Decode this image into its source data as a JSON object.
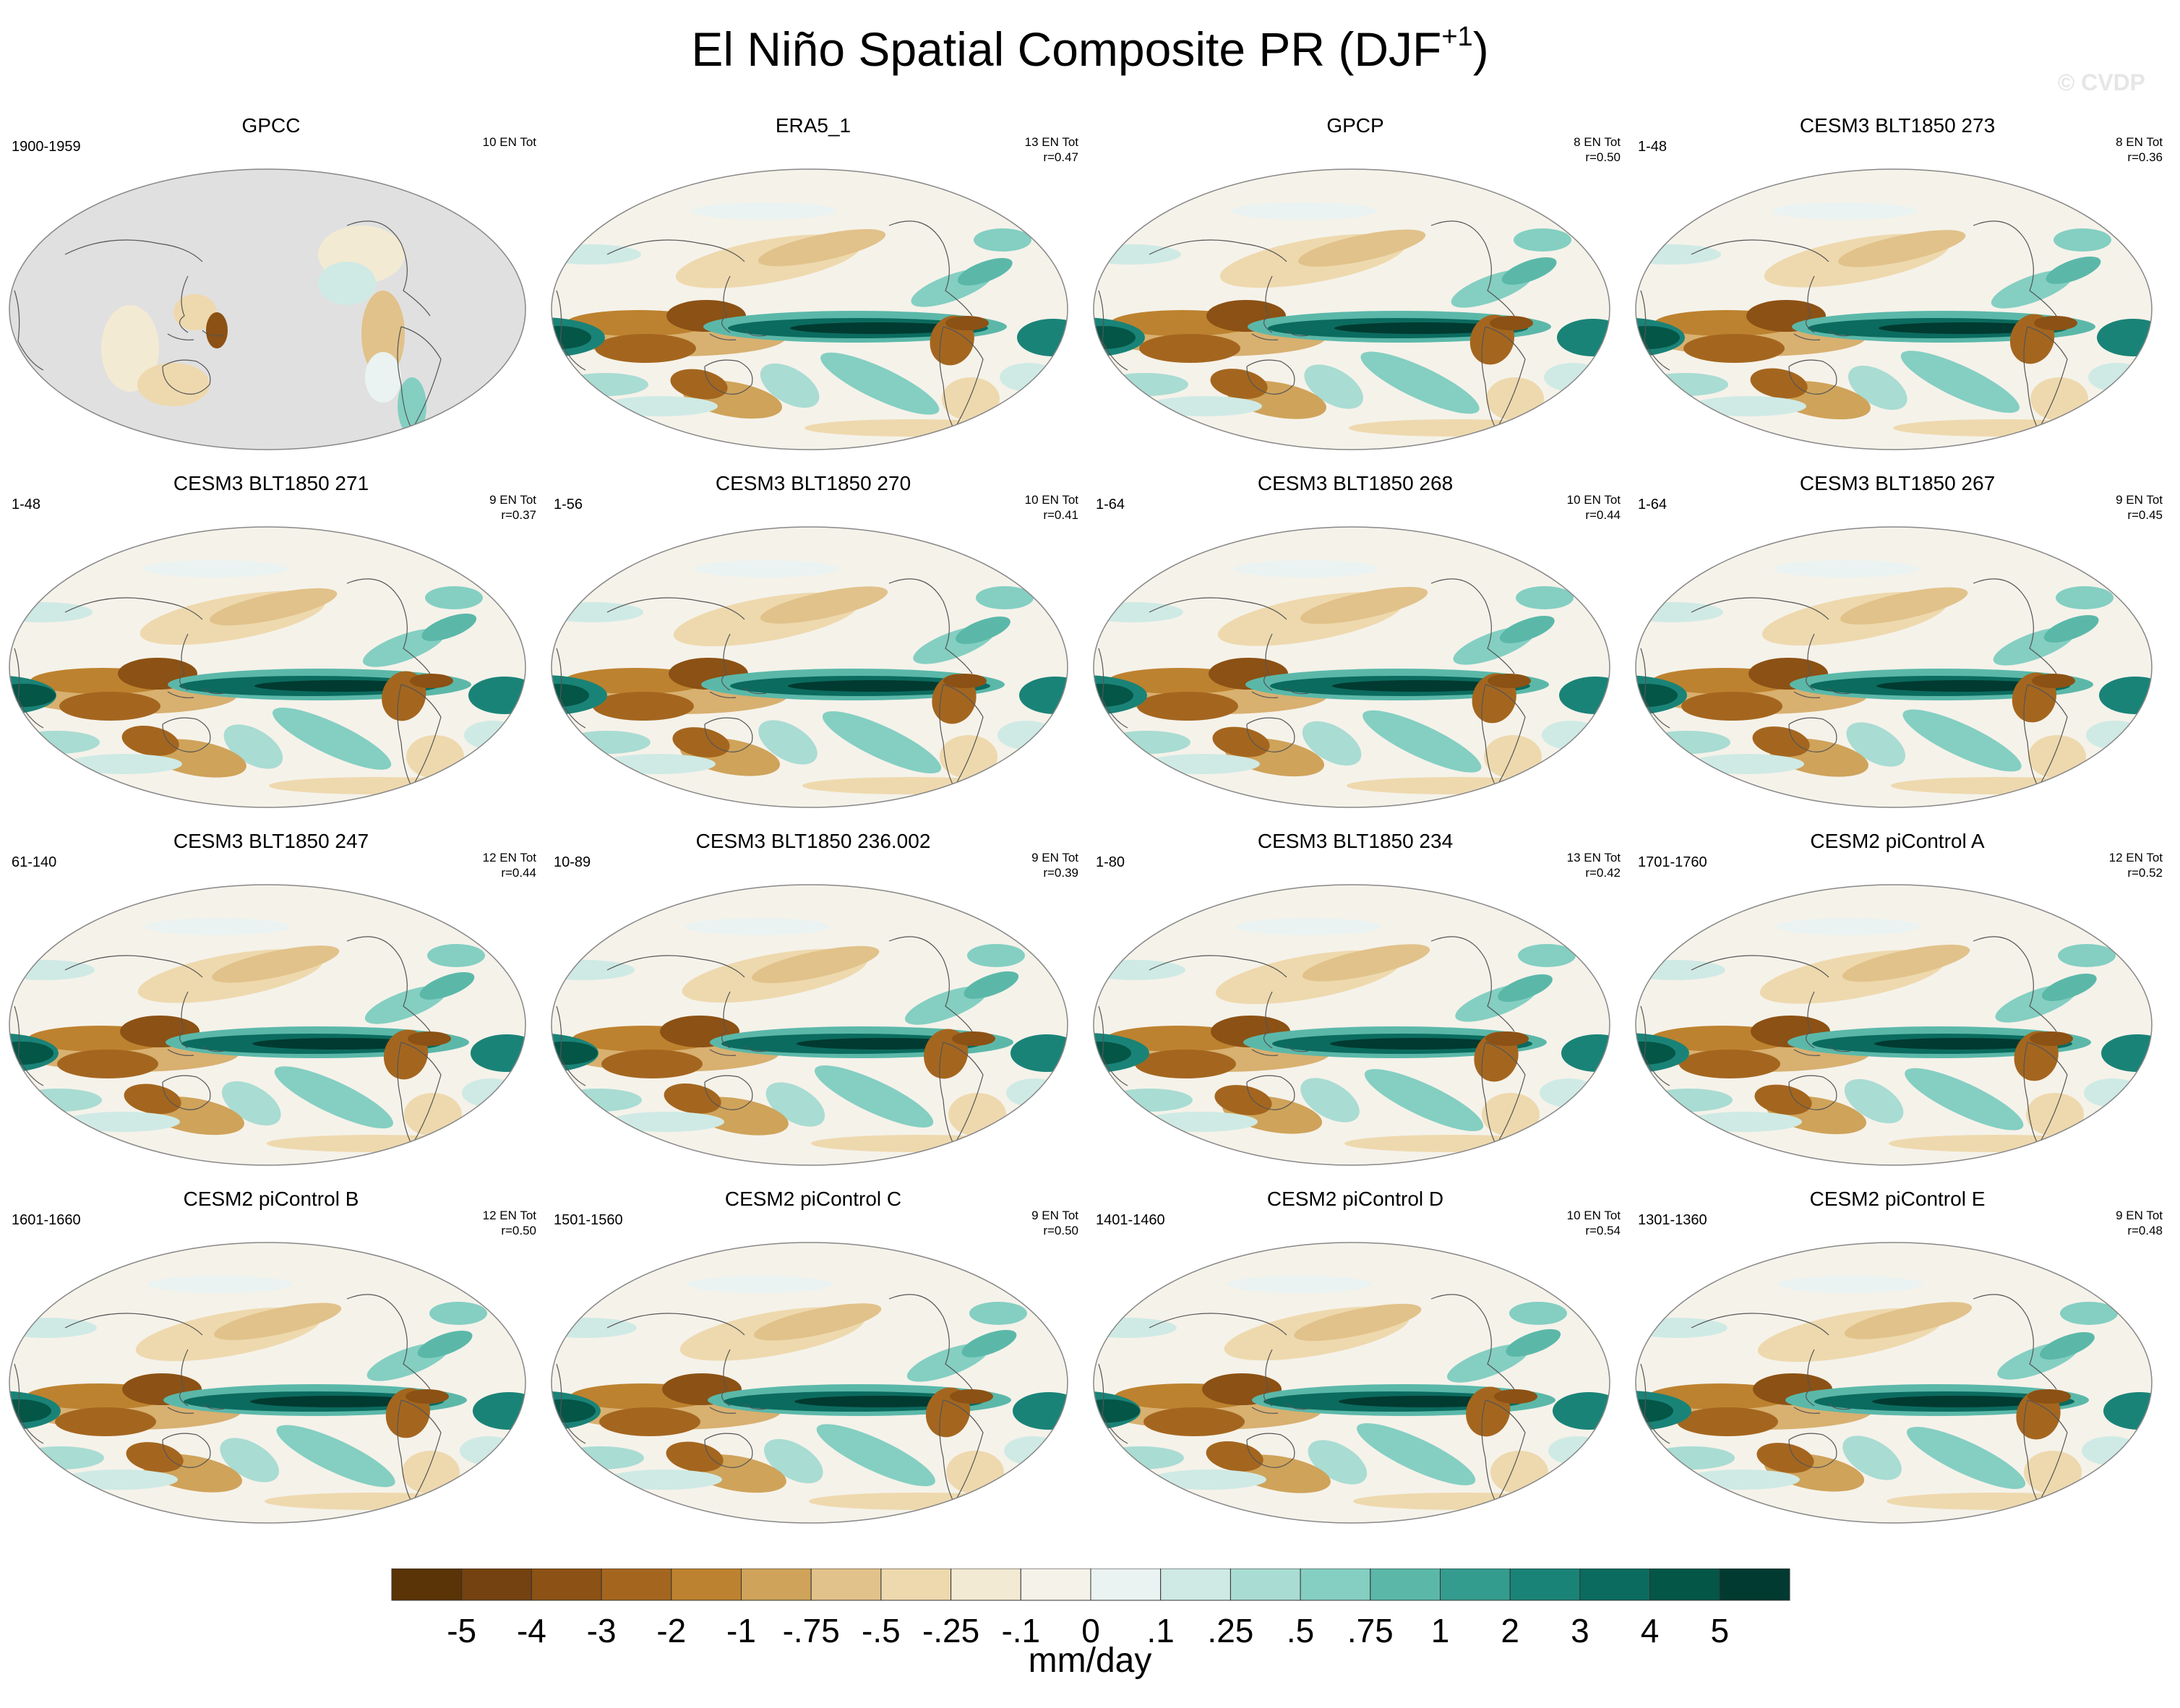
{
  "title_main": "El Niño Spatial Composite PR (DJF",
  "title_sup": "+1",
  "title_close": ")",
  "watermark": "© CVDP",
  "panels": [
    {
      "title": "GPCC",
      "period": "1900-1959",
      "count": "10 EN Tot",
      "r": "",
      "masked": true
    },
    {
      "title": "ERA5_1",
      "period": "",
      "count": "13 EN Tot",
      "r": "r=0.47"
    },
    {
      "title": "GPCP",
      "period": "",
      "count": "8 EN Tot",
      "r": "r=0.50"
    },
    {
      "title": "CESM3 BLT1850 273",
      "period": "1-48",
      "count": "8 EN Tot",
      "r": "r=0.36"
    },
    {
      "title": "CESM3 BLT1850 271",
      "period": "1-48",
      "count": "9 EN Tot",
      "r": "r=0.37"
    },
    {
      "title": "CESM3 BLT1850 270",
      "period": "1-56",
      "count": "10 EN Tot",
      "r": "r=0.41"
    },
    {
      "title": "CESM3 BLT1850 268",
      "period": "1-64",
      "count": "10 EN Tot",
      "r": "r=0.44"
    },
    {
      "title": "CESM3 BLT1850 267",
      "period": "1-64",
      "count": "9 EN Tot",
      "r": "r=0.45"
    },
    {
      "title": "CESM3 BLT1850 247",
      "period": "61-140",
      "count": "12 EN Tot",
      "r": "r=0.44"
    },
    {
      "title": "CESM3 BLT1850 236.002",
      "period": "10-89",
      "count": "9 EN Tot",
      "r": "r=0.39"
    },
    {
      "title": "CESM3 BLT1850 234",
      "period": "1-80",
      "count": "13 EN Tot",
      "r": "r=0.42"
    },
    {
      "title": "CESM2 piControl A",
      "period": "1701-1760",
      "count": "12 EN Tot",
      "r": "r=0.52"
    },
    {
      "title": "CESM2 piControl B",
      "period": "1601-1660",
      "count": "12 EN Tot",
      "r": "r=0.50"
    },
    {
      "title": "CESM2 piControl C",
      "period": "1501-1560",
      "count": "9 EN Tot",
      "r": "r=0.50"
    },
    {
      "title": "CESM2 piControl D",
      "period": "1401-1460",
      "count": "10 EN Tot",
      "r": "r=0.54"
    },
    {
      "title": "CESM2 piControl E",
      "period": "1301-1360",
      "count": "9 EN Tot",
      "r": "r=0.48"
    }
  ],
  "colorbar": {
    "labels": [
      "-5",
      "-4",
      "-3",
      "-2",
      "-1",
      "-.75",
      "-.5",
      "-.25",
      "-.1",
      "0",
      ".1",
      ".25",
      ".5",
      ".75",
      "1",
      "2",
      "3",
      "4",
      "5"
    ],
    "colors": [
      "#5a3306",
      "#744210",
      "#8c5114",
      "#a4661f",
      "#bd822f",
      "#cfa35a",
      "#e1c28a",
      "#eed9ae",
      "#f3ead3",
      "#f5f2ea",
      "#eaf3f1",
      "#cfeae5",
      "#a9dcd3",
      "#84cfc2",
      "#5bb8a9",
      "#349c8e",
      "#1a8377",
      "#0b6b5f",
      "#045647",
      "#013a30"
    ],
    "units": "mm/day"
  },
  "chart_data": {
    "type": "heatmap",
    "title": "El Niño Spatial Composite PR (DJF+1)",
    "colorbar_levels": [
      -5,
      -4,
      -3,
      -2,
      -1,
      -0.75,
      -0.5,
      -0.25,
      -0.1,
      0,
      0.1,
      0.25,
      0.5,
      0.75,
      1,
      2,
      3,
      4,
      5
    ],
    "units": "mm/day",
    "panels": [
      "GPCC",
      "ERA5_1",
      "GPCP",
      "CESM3 BLT1850 273",
      "CESM3 BLT1850 271",
      "CESM3 BLT1850 270",
      "CESM3 BLT1850 268",
      "CESM3 BLT1850 267",
      "CESM3 BLT1850 247",
      "CESM3 BLT1850 236.002",
      "CESM3 BLT1850 234",
      "CESM2 piControl A",
      "CESM2 piControl B",
      "CESM2 piControl C",
      "CESM2 piControl D",
      "CESM2 piControl E"
    ]
  }
}
